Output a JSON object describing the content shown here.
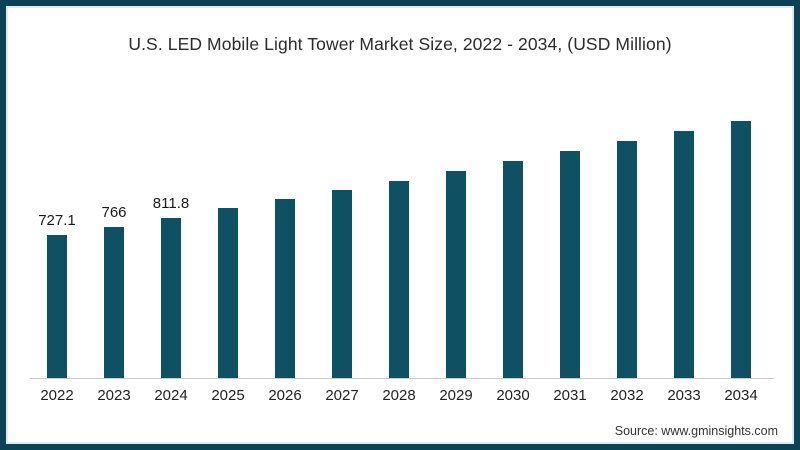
{
  "page": {
    "source_label": "Source: www.gminsights.com",
    "border_color": "#0d4254",
    "background_color": "#ffffff"
  },
  "chart_data": {
    "type": "bar",
    "title": "U.S. LED Mobile Light Tower Market Size, 2022 - 2034, (USD Million)",
    "categories": [
      "2022",
      "2023",
      "2024",
      "2025",
      "2026",
      "2027",
      "2028",
      "2029",
      "2030",
      "2031",
      "2032",
      "2033",
      "2034"
    ],
    "values": [
      727.1,
      766,
      811.8,
      862,
      912,
      955,
      1004,
      1051,
      1102,
      1153,
      1204,
      1256,
      1306
    ],
    "data_labels": [
      "727.1",
      "766",
      "811.8",
      "",
      "",
      "",
      "",
      "",
      "",
      "",
      "",
      "",
      ""
    ],
    "xlabel": "",
    "ylabel": "",
    "ylim": [
      0,
      1400
    ],
    "grid": false,
    "legend": "none",
    "y_axis_shown": false,
    "bar_color": "#0f5063",
    "axis_line_color": "#cccccc"
  }
}
